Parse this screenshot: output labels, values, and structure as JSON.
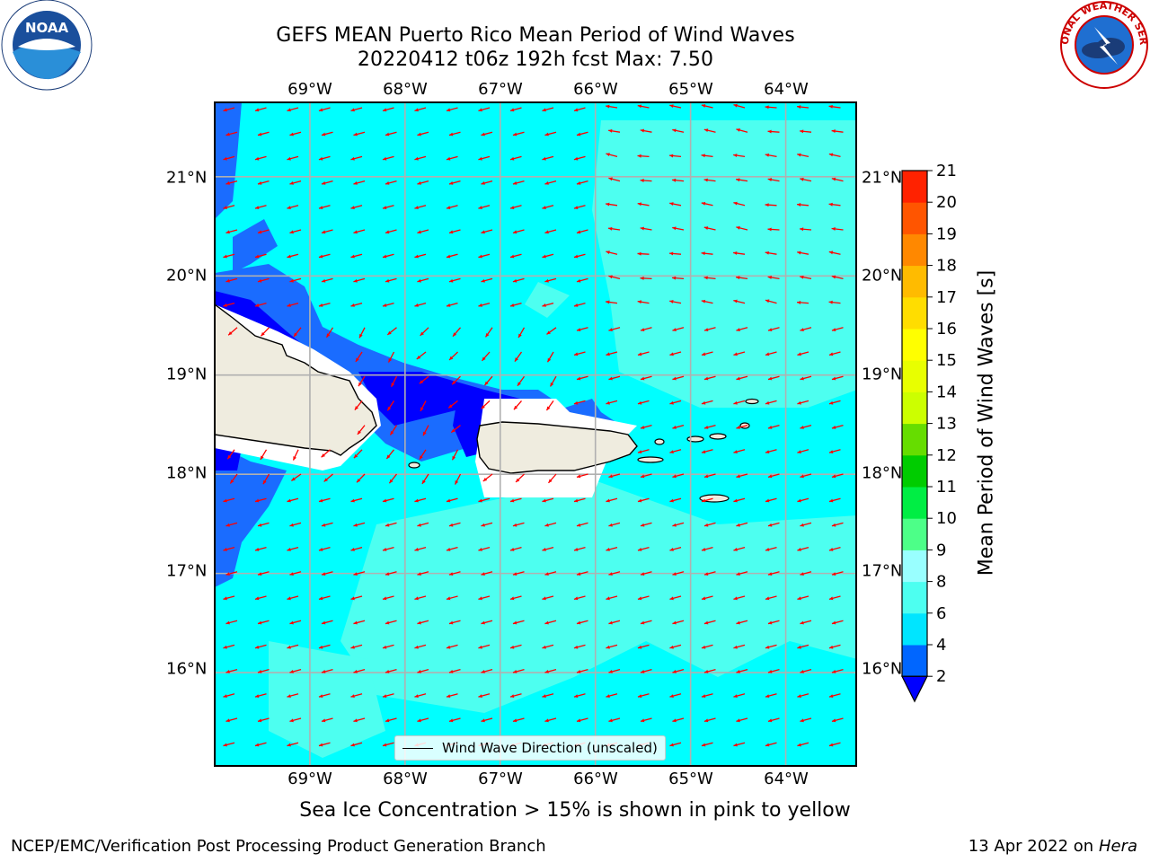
{
  "title": {
    "line1": "GEFS MEAN Puerto Rico Mean Period of Wind Waves",
    "line2": "20220412 t06z 192h fcst   Max: 7.50"
  },
  "map": {
    "lon_ticks": [
      "69°W",
      "68°W",
      "67°W",
      "66°W",
      "65°W",
      "64°W"
    ],
    "lat_ticks": [
      "21°N",
      "20°N",
      "19°N",
      "18°N",
      "17°N",
      "16°N"
    ],
    "lon_range": [
      -70.0,
      -63.25
    ],
    "lat_range": [
      15.05,
      21.75
    ],
    "grid": true,
    "arrow_color": "#ff0000",
    "land_color": "#efecdf",
    "legend_label": "Wind Wave Direction (unscaled)",
    "wave_direction": "toward west-southwest (easterly waves)"
  },
  "colorbar": {
    "label": "Mean Period of Wind Waves [s]",
    "ticks": [
      "2",
      "4",
      "6",
      "8",
      "9",
      "10",
      "11",
      "12",
      "13",
      "14",
      "15",
      "16",
      "17",
      "18",
      "19",
      "20",
      "21"
    ],
    "levels": [
      2,
      4,
      6,
      8,
      9,
      10,
      11,
      12,
      13,
      14,
      15,
      16,
      17,
      18,
      19,
      20,
      21
    ],
    "colors": [
      "#0066ff",
      "#00e5ff",
      "#4dfff0",
      "#99ffff",
      "#4dff88",
      "#00ee44",
      "#00cc00",
      "#66dd00",
      "#ccff00",
      "#e8ff00",
      "#ffff00",
      "#ffdd00",
      "#ffbb00",
      "#ff8800",
      "#ff5500",
      "#ff2200"
    ],
    "under_color": "#0000ff",
    "over_color": "#ff0000"
  },
  "footnote": "Sea Ice Concentration > 15% is shown in pink to yellow",
  "credit": "NCEP/EMC/Verification Post Processing Product Generation Branch",
  "date": {
    "prefix": "13 Apr 2022 on ",
    "system": "Hera"
  },
  "logos": {
    "noaa_text": "NOAA",
    "nws_text": "NATIONAL WEATHER SERVICE"
  }
}
